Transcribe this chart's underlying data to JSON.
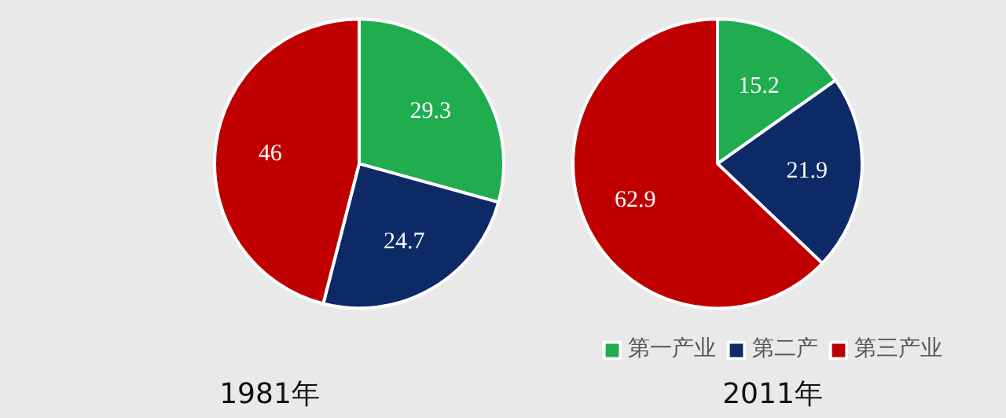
{
  "chart_data": [
    {
      "type": "pie",
      "title": "1981年",
      "categories": [
        "第一产业",
        "第二产",
        "第三产业"
      ],
      "values": [
        29.3,
        24.7,
        46
      ],
      "colors": [
        "#1fad4f",
        "#0d2a66",
        "#c00000"
      ],
      "data_labels": true,
      "legend": "bottom"
    },
    {
      "type": "pie",
      "title": "2011年",
      "categories": [
        null,
        null,
        null
      ],
      "values": [
        15.2,
        21.9,
        62.9
      ],
      "colors": [
        "#1fad4f",
        "#0d2a66",
        "#c00000"
      ],
      "data_labels": true
    }
  ]
}
